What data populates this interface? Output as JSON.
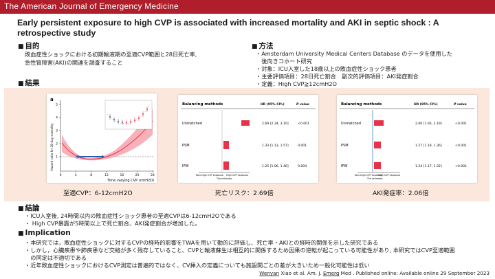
{
  "header": {
    "journal": "The American Journal of Emergency Medicine"
  },
  "paper_title": "Early persistent exposure to high CVP is associated with increased mortality and AKI in septic shock : A retrospective study",
  "sections": {
    "purpose": {
      "heading": "目的",
      "lines": [
        "敗血症性ショックにおける初期輸液期の至適CVP範囲と28日死亡率,",
        "急性腎障害(AKI)の関連を調査すること"
      ]
    },
    "method": {
      "heading": "方法",
      "lines": [
        "・Amsterdam University Medical Centers Database のデータを使用した",
        "　後向きコホート研究",
        "・対象：ICU入室した18歳以上の敗血症性ショック患者",
        "・主要評価項目：28日死亡割合　副次的評価項目：AKI発症割合",
        "・定義：High CVP≧12cmH2O"
      ]
    },
    "results": {
      "heading": "結果",
      "captions": [
        "至適CVP：6-12cmH2O",
        "死亡リスク：2.69倍",
        "AKI発症率：2.06倍"
      ]
    },
    "conclusion": {
      "heading": "結論",
      "lines": [
        "・ICU入室後, 24時間以内の敗血症性ショック患者の至適CVPは6-12cmH2Oである",
        "・ High CVP暴露が5時間以上で死亡割合、AKI発症割合が増加した。"
      ]
    },
    "implication": {
      "heading": "Implication",
      "lines": [
        "・本研究では，敗血症性ショックに対するCVPの経時的影響をTWAを用いて動的に評価し、死亡率・AKIとの経時的関係を示した研究である",
        "・しかし，心臓疾患や肺疾患など交絡が多く残存していること、CVPと輸液蘇生は相互的に関係するため因果の逆転が起こっている可能性があり, 本研究ではCVP至適範囲",
        "　の同定は不適切である",
        "・近年敗血症性ショックにおけるCVP測定は普遍的ではなく、CV挿入の定義についても施設間ごとの差が大きいため一般化可能性は低い"
      ]
    }
  },
  "figure_a": {
    "panel_label": "a",
    "ylabel": "Hazard ratio for 28-day mortality",
    "xlabel": "Time varying CVP (cmH2O)",
    "x_ticks": [
      "0",
      "4",
      "8",
      "12",
      "16",
      "20",
      "24"
    ],
    "y_ticks": [
      "1",
      "2",
      "3",
      "4",
      "5"
    ],
    "colors": {
      "curve": "#e8324a",
      "band": "#f4a3ad",
      "arrow": "#2a5db0"
    }
  },
  "forest_mortality": {
    "header": {
      "method": "Balancing methods",
      "hr": "HR (95% CI%)",
      "p": "P value"
    },
    "rows": [
      {
        "method": "Unmatched",
        "hr": "2.69 [2.34, 3.10]",
        "p": "<0.001"
      },
      {
        "method": "PSM",
        "hr": "1.33 [1.13, 1.57]",
        "p": "0.001"
      },
      {
        "method": "IPW",
        "hr": "1.25 [1.06, 1.46]",
        "p": "0.004"
      }
    ],
    "axis_left": "Non-High CVP exposure",
    "axis_right": "High CVP exposure",
    "axis_mid": "The estimates",
    "color": "#e8324a"
  },
  "forest_aki": {
    "header": {
      "method": "Balancing methods",
      "hr": "HR (95% CI%)",
      "p": "P value"
    },
    "rows": [
      {
        "method": "Unmatched",
        "hr": "2.06 [1.93, 2.19]",
        "p": "<0.001"
      },
      {
        "method": "PSM",
        "hr": "1.27 [1.18, 1.36]",
        "p": "<0.001"
      },
      {
        "method": "IPW",
        "hr": "1.24 [1.17, 1.32]",
        "p": "<0.001"
      }
    ],
    "axis_left": "Non-High CVP exposure",
    "axis_right": "High CVP exposure",
    "axis_mid": "The estimates",
    "color": "#e8324a"
  },
  "footer": {
    "author_underlined": "Wenyan",
    "rest": " Xiao  et al. Am. J. ",
    "journal_underlined": "Emerg",
    "tail": " Med . Published online: Available online 29 September 2023"
  }
}
